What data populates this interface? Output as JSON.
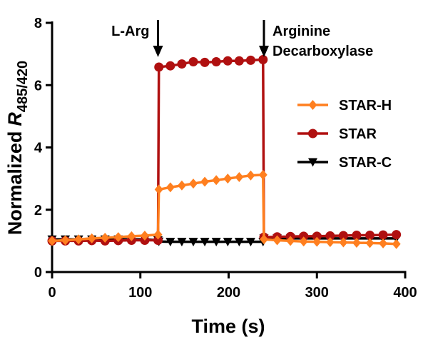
{
  "chart_data": {
    "type": "line",
    "xlabel": "Time (s)",
    "ylabel": {
      "text": "Normalized",
      "symbol": "R",
      "subscript": "485/420"
    },
    "xlim": [
      0,
      400
    ],
    "xticks": [
      0,
      100,
      200,
      300,
      400
    ],
    "ylim": [
      0,
      8
    ],
    "yticks": [
      0,
      2,
      4,
      6,
      8
    ],
    "legend": "right",
    "annotations": [
      {
        "x": 120,
        "side": "left",
        "lines": [
          "L-Arg"
        ]
      },
      {
        "x": 240,
        "side": "right",
        "lines": [
          "Arginine",
          "Decarboxylase"
        ]
      }
    ],
    "x": [
      0,
      15,
      30,
      45,
      60,
      75,
      90,
      105,
      120,
      121,
      134,
      147,
      160,
      173,
      186,
      199,
      212,
      225,
      239,
      240,
      255,
      270,
      285,
      300,
      315,
      330,
      345,
      360,
      375,
      390
    ],
    "series": [
      {
        "name": "STAR-H",
        "color": "#ff7f1f",
        "marker": "diamond",
        "values": [
          1.0,
          1.02,
          1.05,
          1.08,
          1.1,
          1.12,
          1.15,
          1.17,
          1.2,
          2.65,
          2.72,
          2.78,
          2.84,
          2.9,
          2.95,
          3.0,
          3.05,
          3.1,
          3.12,
          1.05,
          1.02,
          1.0,
          0.98,
          0.97,
          0.96,
          0.95,
          0.94,
          0.93,
          0.92,
          0.9
        ]
      },
      {
        "name": "STAR",
        "color": "#b01010",
        "marker": "circle",
        "values": [
          1.0,
          1.0,
          1.0,
          1.01,
          1.0,
          1.01,
          1.02,
          1.02,
          1.02,
          6.58,
          6.62,
          6.68,
          6.75,
          6.73,
          6.75,
          6.78,
          6.78,
          6.8,
          6.82,
          1.12,
          1.13,
          1.14,
          1.15,
          1.15,
          1.16,
          1.17,
          1.18,
          1.18,
          1.19,
          1.2
        ]
      },
      {
        "name": "STAR-C",
        "color": "#000000",
        "marker": "triangle-down",
        "values": [
          1.05,
          1.05,
          1.05,
          1.05,
          1.05,
          1.05,
          1.05,
          1.05,
          1.02,
          0.98,
          0.97,
          0.97,
          0.97,
          0.97,
          0.97,
          0.97,
          0.97,
          0.97,
          0.97,
          1.08,
          1.08,
          1.08,
          1.08,
          1.08,
          1.08,
          1.08,
          1.08,
          1.08,
          1.08,
          1.08
        ]
      }
    ]
  }
}
